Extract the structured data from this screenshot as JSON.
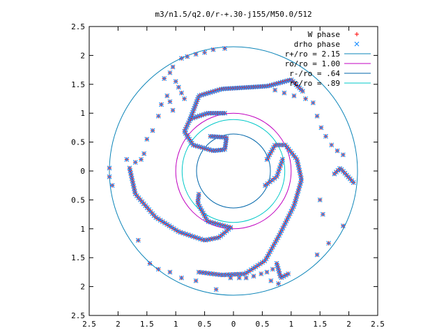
{
  "chart_data": {
    "type": "scatter",
    "title": "m3/n1.5/q2.0/r-+.30-j155/M50.0/512",
    "xlim": [
      -2.5,
      2.5
    ],
    "ylim": [
      -2.5,
      2.5
    ],
    "x_ticks": [
      -2.5,
      -2,
      -1.5,
      -1,
      -0.5,
      0,
      0.5,
      1,
      1.5,
      2,
      2.5
    ],
    "x_tick_labels": [
      "2.5",
      "2",
      "1.5",
      "1",
      "0.5",
      "0",
      "0.5",
      "1",
      "1.5",
      "2",
      "2.5"
    ],
    "y_ticks": [
      2.5,
      2,
      1.5,
      1,
      0.5,
      0,
      -0.5,
      -1,
      -1.5,
      -2,
      -2.5
    ],
    "y_tick_labels": [
      "2.5",
      "2",
      "1.5",
      "1",
      "0.5",
      "0",
      "0.5",
      "1",
      "1.5",
      "2",
      "2.5"
    ],
    "grid": false,
    "legend_position": "top-right",
    "series": [
      {
        "name": "W phase",
        "marker": "plus",
        "color": "#ff0000"
      },
      {
        "name": "drho phase",
        "marker": "cross",
        "color": "#1e90ff"
      }
    ],
    "circles": [
      {
        "name": "r+/ro = 2.15",
        "radius": 2.15,
        "color": "#0b84b8"
      },
      {
        "name": "ro/ro = 1.00",
        "radius": 1.0,
        "color": "#c000c0"
      },
      {
        "name": "r-/ro = .64",
        "radius": 0.64,
        "color": "#0066aa"
      },
      {
        "name": "rc/ro = .89",
        "radius": 0.89,
        "color": "#00c8c8"
      }
    ],
    "arms": [
      {
        "points": [
          [
            -0.15,
            1.0
          ],
          [
            -0.45,
            1.0
          ],
          [
            -0.75,
            0.9
          ],
          [
            -0.85,
            0.68
          ],
          [
            -0.7,
            0.45
          ],
          [
            -0.35,
            0.35
          ],
          [
            -0.15,
            0.37
          ],
          [
            -0.12,
            0.58
          ],
          [
            -0.4,
            0.6
          ]
        ],
        "n": 55
      },
      {
        "points": [
          [
            -0.75,
            0.9
          ],
          [
            -0.6,
            1.3
          ],
          [
            -0.2,
            1.42
          ],
          [
            0.3,
            1.45
          ],
          [
            0.6,
            1.47
          ],
          [
            1.0,
            1.58
          ],
          [
            1.2,
            1.38
          ]
        ],
        "n": 60
      },
      {
        "points": [
          [
            0.58,
            0.2
          ],
          [
            0.72,
            0.45
          ],
          [
            0.9,
            0.45
          ],
          [
            1.1,
            0.2
          ],
          [
            1.18,
            -0.15
          ],
          [
            1.05,
            -0.6
          ],
          [
            0.8,
            -1.1
          ],
          [
            0.55,
            -1.55
          ],
          [
            0.2,
            -1.78
          ],
          [
            -0.2,
            -1.8
          ],
          [
            -0.6,
            -1.75
          ]
        ],
        "n": 85
      },
      {
        "points": [
          [
            0.55,
            -0.25
          ],
          [
            0.75,
            -0.1
          ],
          [
            0.85,
            0.2
          ]
        ],
        "n": 12
      },
      {
        "points": [
          [
            -1.8,
            0.05
          ],
          [
            -1.7,
            -0.4
          ],
          [
            -1.35,
            -0.8
          ],
          [
            -0.95,
            -1.05
          ],
          [
            -0.5,
            -1.2
          ],
          [
            -0.25,
            -1.15
          ],
          [
            -0.05,
            -0.98
          ]
        ],
        "n": 55
      },
      {
        "points": [
          [
            -0.05,
            -0.98
          ],
          [
            -0.45,
            -0.87
          ],
          [
            -0.62,
            -0.55
          ],
          [
            -0.6,
            -0.4
          ]
        ],
        "n": 22
      },
      {
        "points": [
          [
            0.75,
            -1.6
          ],
          [
            0.82,
            -1.85
          ],
          [
            0.95,
            -1.78
          ]
        ],
        "n": 10
      },
      {
        "points": [
          [
            1.75,
            -0.05
          ],
          [
            1.85,
            0.05
          ],
          [
            2.08,
            -0.2
          ]
        ],
        "n": 12
      }
    ],
    "scattered_points": [
      [
        0.72,
        1.4
      ],
      [
        0.88,
        1.35
      ],
      [
        1.05,
        1.3
      ],
      [
        1.25,
        1.25
      ],
      [
        1.38,
        1.18
      ],
      [
        1.45,
        0.95
      ],
      [
        1.52,
        0.75
      ],
      [
        1.6,
        0.6
      ],
      [
        1.7,
        0.45
      ],
      [
        1.8,
        0.35
      ],
      [
        1.9,
        0.28
      ],
      [
        1.5,
        -0.5
      ],
      [
        1.55,
        -0.75
      ],
      [
        1.9,
        -0.95
      ],
      [
        1.65,
        -1.25
      ],
      [
        1.45,
        -1.45
      ],
      [
        -1.15,
        1.3
      ],
      [
        -1.25,
        1.15
      ],
      [
        -1.3,
        0.95
      ],
      [
        -1.4,
        0.7
      ],
      [
        -1.5,
        0.55
      ],
      [
        -1.55,
        0.3
      ],
      [
        -1.6,
        0.2
      ],
      [
        -1.7,
        0.15
      ],
      [
        -1.85,
        0.2
      ],
      [
        -2.15,
        0.05
      ],
      [
        -2.15,
        -0.1
      ],
      [
        -2.1,
        -0.25
      ],
      [
        -1.65,
        -1.2
      ],
      [
        -1.45,
        -1.6
      ],
      [
        -1.3,
        -1.7
      ],
      [
        -1.1,
        -1.75
      ],
      [
        -0.9,
        -1.85
      ],
      [
        -0.65,
        -1.9
      ],
      [
        -0.3,
        -2.05
      ],
      [
        -0.05,
        -1.85
      ],
      [
        0.1,
        -1.85
      ],
      [
        0.22,
        -1.85
      ],
      [
        0.35,
        -1.82
      ],
      [
        0.48,
        -1.78
      ],
      [
        0.58,
        -1.75
      ],
      [
        0.68,
        -1.7
      ],
      [
        0.65,
        -1.9
      ],
      [
        0.78,
        -1.95
      ],
      [
        -0.15,
        2.12
      ],
      [
        -1.2,
        1.6
      ],
      [
        -1.1,
        1.7
      ],
      [
        -1.05,
        1.8
      ],
      [
        -0.9,
        1.95
      ],
      [
        -0.8,
        1.98
      ],
      [
        -0.65,
        2.02
      ],
      [
        -0.5,
        2.05
      ],
      [
        -0.35,
        2.1
      ],
      [
        -1.0,
        1.55
      ],
      [
        -0.95,
        1.45
      ],
      [
        -0.9,
        1.35
      ],
      [
        -0.85,
        1.25
      ],
      [
        -1.05,
        1.05
      ],
      [
        -1.1,
        1.2
      ]
    ]
  }
}
